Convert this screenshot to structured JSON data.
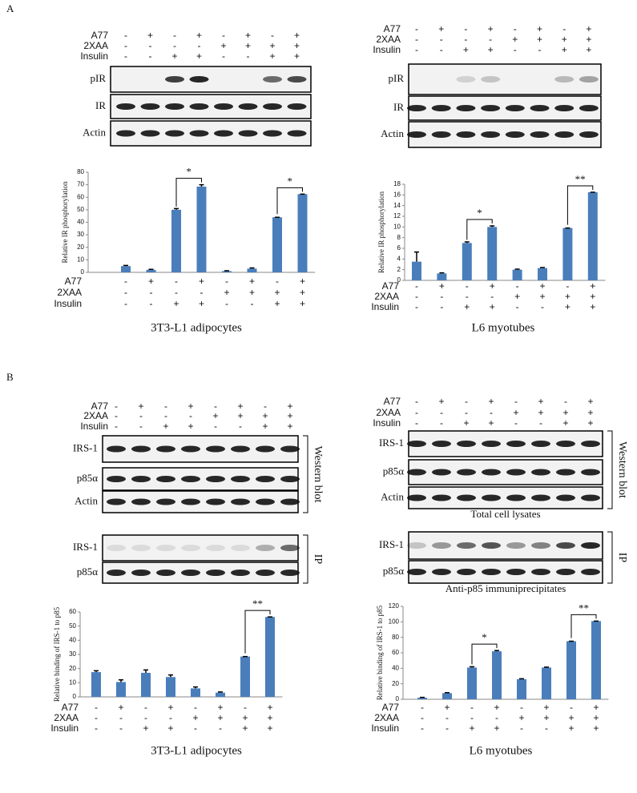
{
  "figure": {
    "panel_labels": [
      "A",
      "B"
    ],
    "blots": [
      {
        "conditions": [
          {
            "name": "A77",
            "signs": [
              "-",
              "+",
              "-",
              "+",
              "-",
              "+",
              "-",
              "+"
            ]
          },
          {
            "name": "2XAA",
            "signs": [
              "-",
              "-",
              "-",
              "-",
              "+",
              "+",
              "+",
              "+"
            ]
          },
          {
            "name": "Insulin",
            "signs": [
              "-",
              "-",
              "+",
              "+",
              "-",
              "-",
              "+",
              "+"
            ]
          }
        ],
        "groups": [
          {
            "rows": [
              "pIR",
              "IR",
              "Actin"
            ]
          }
        ]
      },
      {
        "conditions": [
          {
            "name": "A77",
            "signs": [
              "-",
              "+",
              "-",
              "+",
              "-",
              "+",
              "-",
              "+"
            ]
          },
          {
            "name": "2XAA",
            "signs": [
              "-",
              "-",
              "-",
              "-",
              "+",
              "+",
              "+",
              "+"
            ]
          },
          {
            "name": "Insulin",
            "signs": [
              "-",
              "-",
              "+",
              "+",
              "-",
              "-",
              "+",
              "+"
            ]
          }
        ],
        "groups": [
          {
            "rows": [
              "pIR",
              "IR",
              "Actin"
            ]
          }
        ]
      },
      {
        "conditions": [
          {
            "name": "A77",
            "signs": [
              "-",
              "+",
              "-",
              "+",
              "-",
              "+",
              "-",
              "+"
            ]
          },
          {
            "name": "2XAA",
            "signs": [
              "-",
              "-",
              "-",
              "-",
              "+",
              "+",
              "+",
              "+"
            ]
          },
          {
            "name": "Insulin",
            "signs": [
              "-",
              "-",
              "+",
              "+",
              "-",
              "-",
              "+",
              "+"
            ]
          }
        ],
        "groups": [
          {
            "rows": [
              "IRS-1",
              "p85α",
              "Actin"
            ],
            "bracket": "Western blot"
          },
          {
            "rows": [
              "IRS-1",
              "p85α"
            ],
            "bracket": "IP"
          }
        ]
      },
      {
        "conditions": [
          {
            "name": "A77",
            "signs": [
              "-",
              "+",
              "-",
              "+",
              "-",
              "+",
              "-",
              "+"
            ]
          },
          {
            "name": "2XAA",
            "signs": [
              "-",
              "-",
              "-",
              "-",
              "+",
              "+",
              "+",
              "+"
            ]
          },
          {
            "name": "Insulin",
            "signs": [
              "-",
              "-",
              "+",
              "+",
              "-",
              "-",
              "+",
              "+"
            ]
          }
        ],
        "groups": [
          {
            "rows": [
              "IRS-1",
              "p85α",
              "Actin"
            ],
            "bracket": "Western blot",
            "caption": "Total cell lysates"
          },
          {
            "rows": [
              "IRS-1",
              "p85α"
            ],
            "bracket": "IP",
            "caption": "Anti-p85 immuniprecipitates"
          }
        ]
      }
    ]
  },
  "chart_data": [
    {
      "type": "bar",
      "ylabel": "Relative IR phosphorylation",
      "xlabel": "3T3-L1  adipocytes",
      "color": "#4a7ebb",
      "values": [
        5,
        2,
        50,
        68.5,
        1,
        3,
        44,
        62.5
      ],
      "errors": [
        0.5,
        0.4,
        1,
        1.5,
        0.3,
        0.5,
        0,
        0
      ],
      "ylim": [
        0,
        80
      ],
      "yticks": [
        0,
        10,
        20,
        30,
        40,
        50,
        60,
        70,
        80
      ],
      "annotations": [
        "*",
        "*"
      ],
      "conditions": [
        {
          "name": "A77",
          "signs": [
            "-",
            "+",
            "-",
            "+",
            "-",
            "+",
            "-",
            "+"
          ]
        },
        {
          "name": "2XAA",
          "signs": [
            "-",
            "-",
            "-",
            "-",
            "+",
            "+",
            "+",
            "+"
          ]
        },
        {
          "name": "Insulin",
          "signs": [
            "-",
            "-",
            "+",
            "+",
            "-",
            "-",
            "+",
            "+"
          ]
        }
      ]
    },
    {
      "type": "bar",
      "ylabel": "Relative IR phosphorylation",
      "xlabel": "L6 myotubes",
      "color": "#4a7ebb",
      "values": [
        3.5,
        1.3,
        7,
        10,
        2,
        2.3,
        9.8,
        16.5
      ],
      "errors": [
        1.8,
        0.1,
        0.2,
        0.2,
        0.1,
        0.1,
        0,
        0
      ],
      "ylim": [
        0,
        18
      ],
      "yticks": [
        0,
        2,
        4,
        6,
        8,
        10,
        12,
        14,
        16,
        18
      ],
      "annotations": [
        "*",
        "**"
      ],
      "conditions": [
        {
          "name": "A77",
          "signs": [
            "-",
            "+",
            "-",
            "+",
            "-",
            "+",
            "-",
            "+"
          ]
        },
        {
          "name": "2XAA",
          "signs": [
            "-",
            "-",
            "-",
            "-",
            "+",
            "+",
            "+",
            "+"
          ]
        },
        {
          "name": "Insulin",
          "signs": [
            "-",
            "-",
            "+",
            "+",
            "-",
            "-",
            "+",
            "+"
          ]
        }
      ]
    },
    {
      "type": "bar",
      "ylabel": "Relative binding of IRS-1 to p85",
      "xlabel": "3T3-L1  adipocytes",
      "color": "#4a7ebb",
      "values": [
        17.5,
        10.5,
        17,
        14,
        6,
        3,
        28.5,
        56.5
      ],
      "errors": [
        1,
        1.5,
        2,
        1.5,
        1,
        0.5,
        0,
        0
      ],
      "ylim": [
        0,
        60
      ],
      "yticks": [
        0,
        10,
        20,
        30,
        40,
        50,
        60
      ],
      "annotations": [
        "**"
      ],
      "conditions": [
        {
          "name": "A77",
          "signs": [
            "-",
            "+",
            "-",
            "+",
            "-",
            "+",
            "-",
            "+"
          ]
        },
        {
          "name": "2XAA",
          "signs": [
            "-",
            "-",
            "-",
            "-",
            "+",
            "+",
            "+",
            "+"
          ]
        },
        {
          "name": "Insulin",
          "signs": [
            "-",
            "-",
            "+",
            "+",
            "-",
            "-",
            "+",
            "+"
          ]
        }
      ]
    },
    {
      "type": "bar",
      "ylabel": "Relative binding of IRS-1 to p85",
      "xlabel": "L6 myotubes",
      "color": "#4a7ebb",
      "values": [
        2,
        8,
        41,
        62,
        26,
        41,
        75,
        101
      ],
      "errors": [
        0.5,
        0.5,
        1,
        1,
        0.5,
        0.5,
        0,
        0
      ],
      "ylim": [
        0,
        120
      ],
      "yticks": [
        0,
        20,
        40,
        60,
        80,
        100,
        120
      ],
      "annotations": [
        "*",
        "**"
      ],
      "conditions": [
        {
          "name": "A77",
          "signs": [
            "-",
            "+",
            "-",
            "+",
            "-",
            "+",
            "-",
            "+"
          ]
        },
        {
          "name": "2XAA",
          "signs": [
            "-",
            "-",
            "-",
            "-",
            "+",
            "+",
            "+",
            "+"
          ]
        },
        {
          "name": "Insulin",
          "signs": [
            "-",
            "-",
            "+",
            "+",
            "-",
            "-",
            "+",
            "+"
          ]
        }
      ]
    }
  ]
}
